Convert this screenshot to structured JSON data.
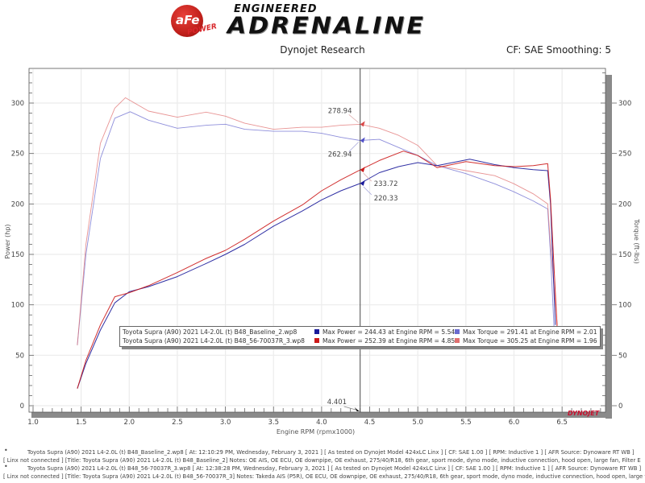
{
  "header": {
    "logo_brand": "aFe",
    "logo_power": "POWER",
    "logo_tagline_top": "ENGINEERED",
    "logo_tagline_main": "ADRENALINE",
    "subtitle": "Dynojet Research",
    "cf_smoothing": "CF: SAE Smoothing: 5"
  },
  "chart": {
    "watermark": "DYNOJET",
    "cursor_label": "4.401",
    "annotations": {
      "red_torque": "278.94",
      "blue_torque": "262.94",
      "red_power": "233.72",
      "blue_power": "220.33"
    }
  },
  "legend": {
    "rows": [
      {
        "run": "Toyota Supra (A90) 2021 L4-2.0L (t) B48_Baseline_2.wp8",
        "power": "Max Power = 244.43 at Engine RPM = 5.54",
        "torque": "Max Torque = 291.41 at Engine RPM = 2.01",
        "power_color": "#1a1a9a",
        "torque_color": "#6a6acf"
      },
      {
        "run": "Toyota Supra (A90) 2021 L4-2.0L (t) B48_56-70037R_3.wp8",
        "power": "Max Power = 252.39 at Engine RPM = 4.85",
        "torque": "Max Torque = 305.25 at Engine RPM = 1.96",
        "power_color": "#cc1a1a",
        "torque_color": "#e07070"
      }
    ]
  },
  "footer": {
    "lines": [
      "Toyota Supra (A90) 2021 L4-2.0L (t) B48_Baseline_2.wp8 [ At: 12:10:29 PM, Wednesday, February 3, 2021 ] [ As tested on Dynojet Model 424xLC Linx ] [ CF: SAE 1.00 ] [ RPM: Inductive 1 ] [ AFR Source: Dynoware RT WB ]",
      "[ Linx not connected ] [Title: Toyota Supra (A90) 2021 L4-2.0L (t) B48_Baseline_2]  Notes: OE AIS, OE ECU, OE downpipe, OE exhaust, 275/40/R18, 6th gear, sport mode, dyno mode, inductive connection, hood open, large fan, Filter E",
      "Toyota Supra (A90) 2021 L4-2.0L (t) B48_56-70037R_3.wp8 [ At: 12:38:28 PM, Wednesday, February 3, 2021 ] [ As tested on Dynojet Model 424xLC Linx ] [ CF: SAE 1.00 ] [ RPM: Inductive 1 ] [ AFR Source: Dynoware RT WB ]",
      "[ Linx not connected ] [Title: Toyota Supra (A90) 2021 L4-2.0L (t) B48_56-70037R_3]  Notes: Takeda AIS (P5R), OE ECU, OE downpipe, OE exhaust, 275/40/R18, 6th gear, sport mode, dyno mode, inductive connection, hood open, large fan"
    ],
    "bullet": "•"
  },
  "chart_data": {
    "type": "line",
    "title": "Dynojet Research",
    "subtitle": "CF: SAE Smoothing: 5",
    "xlabel": "Engine RPM (rpmx1000)",
    "ylabel": "Power (hp)",
    "y2label": "Torque (ft-lbs)",
    "xlim": [
      1.0,
      6.9
    ],
    "ylim": [
      -10,
      330
    ],
    "y2lim": [
      -10,
      330
    ],
    "x_ticks": [
      "1.0",
      "1.5",
      "2.0",
      "2.5",
      "3.0",
      "3.5",
      "4.0",
      "4.5",
      "5.0",
      "5.5",
      "6.0",
      "6.5"
    ],
    "y_ticks": [
      "0",
      "50",
      "100",
      "150",
      "200",
      "250",
      "300"
    ],
    "y2_ticks": [
      "0",
      "50",
      "100",
      "150",
      "200",
      "250",
      "300"
    ],
    "grid": true,
    "cursor_x": 4.401,
    "series": [
      {
        "name": "Baseline_2 Power (hp)",
        "color": "#1a1a9a",
        "axis": "left",
        "x": [
          1.46,
          1.55,
          1.7,
          1.85,
          2.0,
          2.2,
          2.5,
          2.8,
          3.0,
          3.2,
          3.5,
          3.8,
          4.0,
          4.2,
          4.401,
          4.6,
          4.8,
          5.0,
          5.2,
          5.54,
          5.8,
          6.0,
          6.2,
          6.35,
          6.38,
          6.43
        ],
        "y": [
          17,
          42,
          75,
          102,
          113,
          118,
          128,
          141,
          150,
          160,
          178,
          193,
          204,
          213,
          220.33,
          231,
          237,
          241,
          238,
          244.43,
          239,
          236,
          234,
          233,
          200,
          80
        ]
      },
      {
        "name": "56-70037R_3 Power (hp)",
        "color": "#cc1a1a",
        "axis": "left",
        "x": [
          1.46,
          1.55,
          1.7,
          1.85,
          2.0,
          2.2,
          2.5,
          2.8,
          3.0,
          3.2,
          3.5,
          3.8,
          4.0,
          4.2,
          4.401,
          4.6,
          4.85,
          5.0,
          5.2,
          5.5,
          5.8,
          6.0,
          6.2,
          6.35,
          6.38,
          6.45
        ],
        "y": [
          17,
          45,
          80,
          108,
          112,
          119,
          132,
          146,
          154,
          165,
          183,
          199,
          213,
          224,
          233.72,
          243,
          252.39,
          248,
          236,
          242,
          238,
          237,
          238,
          240,
          205,
          75
        ]
      },
      {
        "name": "Baseline_2 Torque (ft-lbs)",
        "color": "#6a6acf",
        "axis": "right",
        "x": [
          1.46,
          1.55,
          1.7,
          1.85,
          2.01,
          2.2,
          2.5,
          2.8,
          3.0,
          3.2,
          3.5,
          3.8,
          4.0,
          4.2,
          4.401,
          4.6,
          4.8,
          5.0,
          5.2,
          5.5,
          5.8,
          6.0,
          6.2,
          6.35,
          6.38,
          6.42
        ],
        "y": [
          60,
          150,
          245,
          285,
          291.41,
          283,
          275,
          278,
          279,
          274,
          272,
          272,
          270,
          266,
          262.94,
          264,
          256,
          248,
          238,
          230,
          220,
          212,
          203,
          195,
          150,
          70
        ]
      },
      {
        "name": "56-70037R_3 Torque (ft-lbs)",
        "color": "#e07070",
        "axis": "right",
        "x": [
          1.46,
          1.55,
          1.7,
          1.85,
          1.96,
          2.2,
          2.5,
          2.8,
          3.0,
          3.2,
          3.5,
          3.8,
          4.0,
          4.2,
          4.401,
          4.6,
          4.8,
          5.0,
          5.2,
          5.5,
          5.8,
          6.0,
          6.2,
          6.35,
          6.38,
          6.45
        ],
        "y": [
          60,
          160,
          260,
          295,
          305.25,
          292,
          286,
          291,
          287,
          280,
          274,
          276,
          276,
          278,
          278.94,
          275,
          268,
          258,
          238,
          233,
          228,
          220,
          210,
          200,
          160,
          80
        ]
      }
    ],
    "legend": [
      "Toyota Supra (A90) 2021 L4-2.0L (t) B48_Baseline_2.wp8",
      "Toyota Supra (A90) 2021 L4-2.0L (t) B48_56-70037R_3.wp8"
    ],
    "max_values": {
      "baseline_power": {
        "value": 244.43,
        "rpm": 5.54
      },
      "baseline_torque": {
        "value": 291.41,
        "rpm": 2.01
      },
      "mod_power": {
        "value": 252.39,
        "rpm": 4.85
      },
      "mod_torque": {
        "value": 305.25,
        "rpm": 1.96
      }
    },
    "cursor_values": {
      "rpm": 4.401,
      "red_torque": 278.94,
      "blue_torque": 262.94,
      "red_power": 233.72,
      "blue_power": 220.33
    }
  }
}
